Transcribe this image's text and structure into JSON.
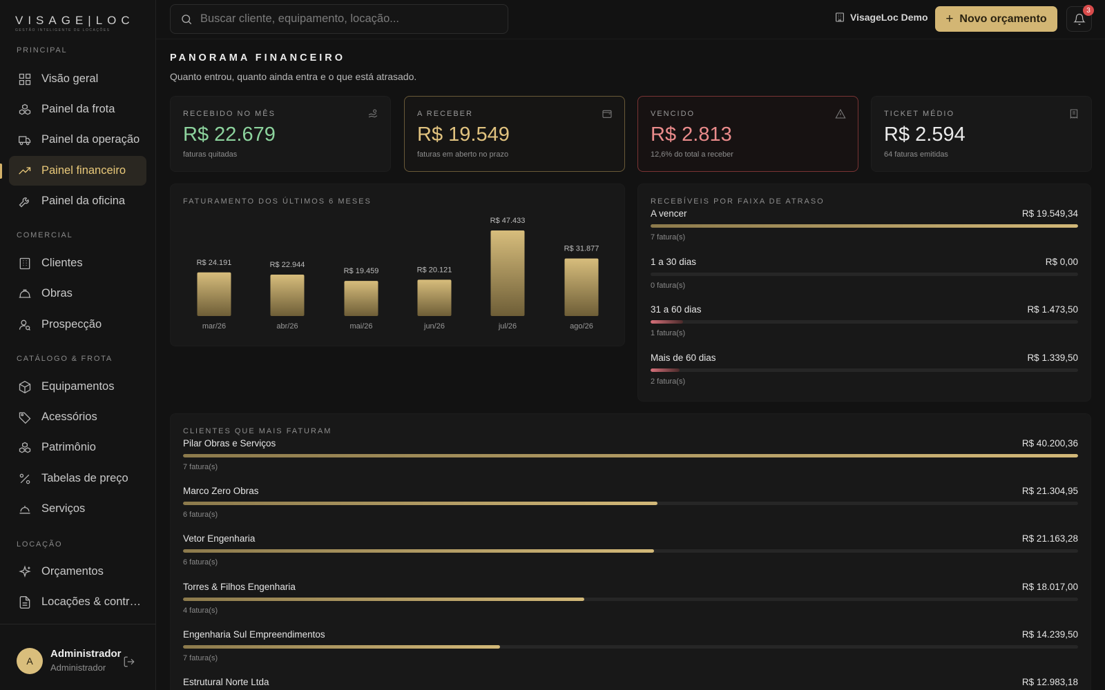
{
  "brand": {
    "logo": "VISAGE|LOC",
    "tagline": "GESTÃO INTELIGENTE DE LOCAÇÕES"
  },
  "sidebar": {
    "sections": [
      {
        "label": "PRINCIPAL",
        "items": [
          {
            "label": "Visão geral",
            "icon": "grid-icon"
          },
          {
            "label": "Painel da frota",
            "icon": "boxes-icon"
          },
          {
            "label": "Painel da operação",
            "icon": "truck-icon"
          },
          {
            "label": "Painel financeiro",
            "icon": "trending-up-icon",
            "active": true
          },
          {
            "label": "Painel da oficina",
            "icon": "wrench-icon"
          }
        ]
      },
      {
        "label": "COMERCIAL",
        "items": [
          {
            "label": "Clientes",
            "icon": "building-icon"
          },
          {
            "label": "Obras",
            "icon": "hard-hat-icon"
          },
          {
            "label": "Prospecção",
            "icon": "user-search-icon"
          }
        ]
      },
      {
        "label": "CATÁLOGO & FROTA",
        "items": [
          {
            "label": "Equipamentos",
            "icon": "package-icon"
          },
          {
            "label": "Acessórios",
            "icon": "tag-icon"
          },
          {
            "label": "Patrimônio",
            "icon": "boxes-icon"
          },
          {
            "label": "Tabelas de preço",
            "icon": "percent-icon"
          },
          {
            "label": "Serviços",
            "icon": "service-bell-icon"
          }
        ]
      },
      {
        "label": "LOCAÇÃO",
        "items": [
          {
            "label": "Orçamentos",
            "icon": "sparkles-icon"
          },
          {
            "label": "Locações & contr…",
            "icon": "file-text-icon"
          }
        ]
      }
    ],
    "user": {
      "initial": "A",
      "name": "Administrador",
      "role": "Administrador"
    }
  },
  "topbar": {
    "search_placeholder": "Buscar cliente, equipamento, locação...",
    "tenant": "VisageLoc Demo",
    "new_button": "Novo orçamento",
    "notifications": "3"
  },
  "page": {
    "title": "PANORAMA FINANCEIRO",
    "subtitle": "Quanto entrou, quanto ainda entra e o que está atrasado."
  },
  "kpis": [
    {
      "label": "RECEBIDO NO MÊS",
      "value": "R$ 22.679",
      "note": "faturas quitadas",
      "tone": "green",
      "icon": "hand-coins-icon"
    },
    {
      "label": "A RECEBER",
      "value": "R$ 19.549",
      "note": "faturas em aberto no prazo",
      "tone": "gold",
      "icon": "wallet-icon"
    },
    {
      "label": "VENCIDO",
      "value": "R$ 2.813",
      "note": "12,6% do total a receber",
      "tone": "red",
      "icon": "alert-triangle-icon"
    },
    {
      "label": "TICKET MÉDIO",
      "value": "R$ 2.594",
      "note": "64 faturas emitidas",
      "tone": "neutral",
      "icon": "receipt-icon"
    }
  ],
  "chart_data": {
    "type": "bar",
    "title": "FATURAMENTO DOS ÚLTIMOS 6 MESES",
    "categories": [
      "mar/26",
      "abr/26",
      "mai/26",
      "jun/26",
      "jul/26",
      "ago/26"
    ],
    "values": [
      24191,
      22944,
      19459,
      20121,
      47433,
      31877
    ],
    "value_labels": [
      "R$ 24.191",
      "R$ 22.944",
      "R$ 19.459",
      "R$ 20.121",
      "R$ 47.433",
      "R$ 31.877"
    ],
    "bar_color": "#c7ad6d"
  },
  "aging": {
    "title": "RECEBÍVEIS POR FAIXA DE ATRASO",
    "rows": [
      {
        "name": "A vencer",
        "value": "R$ 19.549,34",
        "count": "7 fatura(s)",
        "fraction": 1.0,
        "tone": "gold"
      },
      {
        "name": "1 a 30 dias",
        "value": "R$ 0,00",
        "count": "0 fatura(s)",
        "fraction": 0.0,
        "tone": "red"
      },
      {
        "name": "31 a 60 dias",
        "value": "R$ 1.473,50",
        "count": "1 fatura(s)",
        "fraction": 0.0754,
        "tone": "red"
      },
      {
        "name": "Mais de 60 dias",
        "value": "R$ 1.339,50",
        "count": "2 fatura(s)",
        "fraction": 0.0685,
        "tone": "red"
      }
    ]
  },
  "top_clients": {
    "title": "CLIENTES QUE MAIS FATURAM",
    "rows": [
      {
        "name": "Pilar Obras e Serviços",
        "value": "R$ 40.200,36",
        "count": "7 fatura(s)",
        "fraction": 1.0
      },
      {
        "name": "Marco Zero Obras",
        "value": "R$ 21.304,95",
        "count": "6 fatura(s)",
        "fraction": 0.53
      },
      {
        "name": "Vetor Engenharia",
        "value": "R$ 21.163,28",
        "count": "6 fatura(s)",
        "fraction": 0.5264
      },
      {
        "name": "Torres & Filhos Engenharia",
        "value": "R$ 18.017,00",
        "count": "4 fatura(s)",
        "fraction": 0.4482
      },
      {
        "name": "Engenharia Sul Empreendimentos",
        "value": "R$ 14.239,50",
        "count": "7 fatura(s)",
        "fraction": 0.3542
      },
      {
        "name": "Estrutural Norte Ltda",
        "value": "R$ 12.983,18",
        "count": "",
        "fraction": 0.323
      }
    ]
  }
}
